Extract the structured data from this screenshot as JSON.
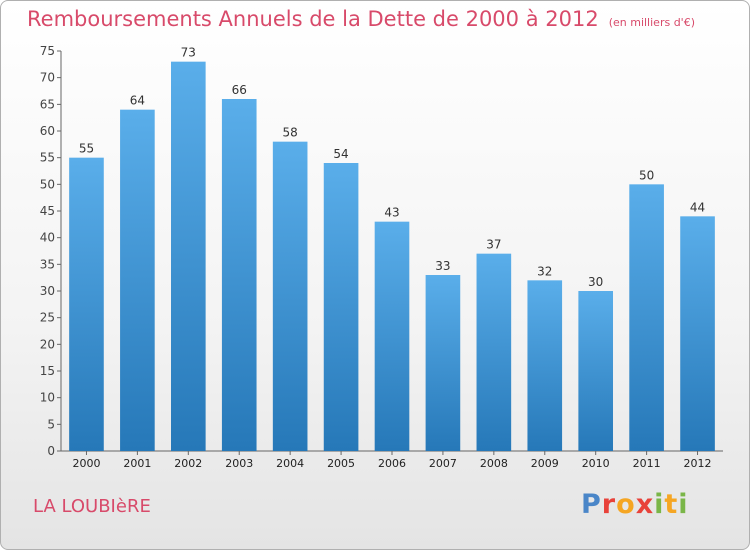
{
  "header": {
    "title": "Remboursements Annuels de la Dette de 2000 à 2012",
    "subtitle": "(en milliers d'€)"
  },
  "footer": {
    "commune": "LA LOUBIèRE",
    "logo_letters": [
      "P",
      "r",
      "o",
      "x",
      "i",
      "t",
      "i"
    ]
  },
  "colors": {
    "title": "#d84a6a",
    "bar_top": "#5aaeea",
    "bar_bottom": "#2678b8",
    "logo": [
      "#4a86c8",
      "#e8423a",
      "#f5a623",
      "#7ab648"
    ]
  },
  "chart_data": {
    "type": "bar",
    "title": "Remboursements Annuels de la Dette de 2000 à 2012",
    "subtitle": "(en milliers d'€)",
    "categories": [
      "2000",
      "2001",
      "2002",
      "2003",
      "2004",
      "2005",
      "2006",
      "2007",
      "2008",
      "2009",
      "2010",
      "2011",
      "2012"
    ],
    "values": [
      55,
      64,
      73,
      66,
      58,
      54,
      43,
      33,
      37,
      32,
      30,
      50,
      44
    ],
    "xlabel": "",
    "ylabel": "",
    "ylim": [
      0,
      75
    ],
    "yticks": [
      0,
      5,
      10,
      15,
      20,
      25,
      30,
      35,
      40,
      45,
      50,
      55,
      60,
      65,
      70,
      75
    ],
    "grid": false,
    "data_labels": true
  }
}
